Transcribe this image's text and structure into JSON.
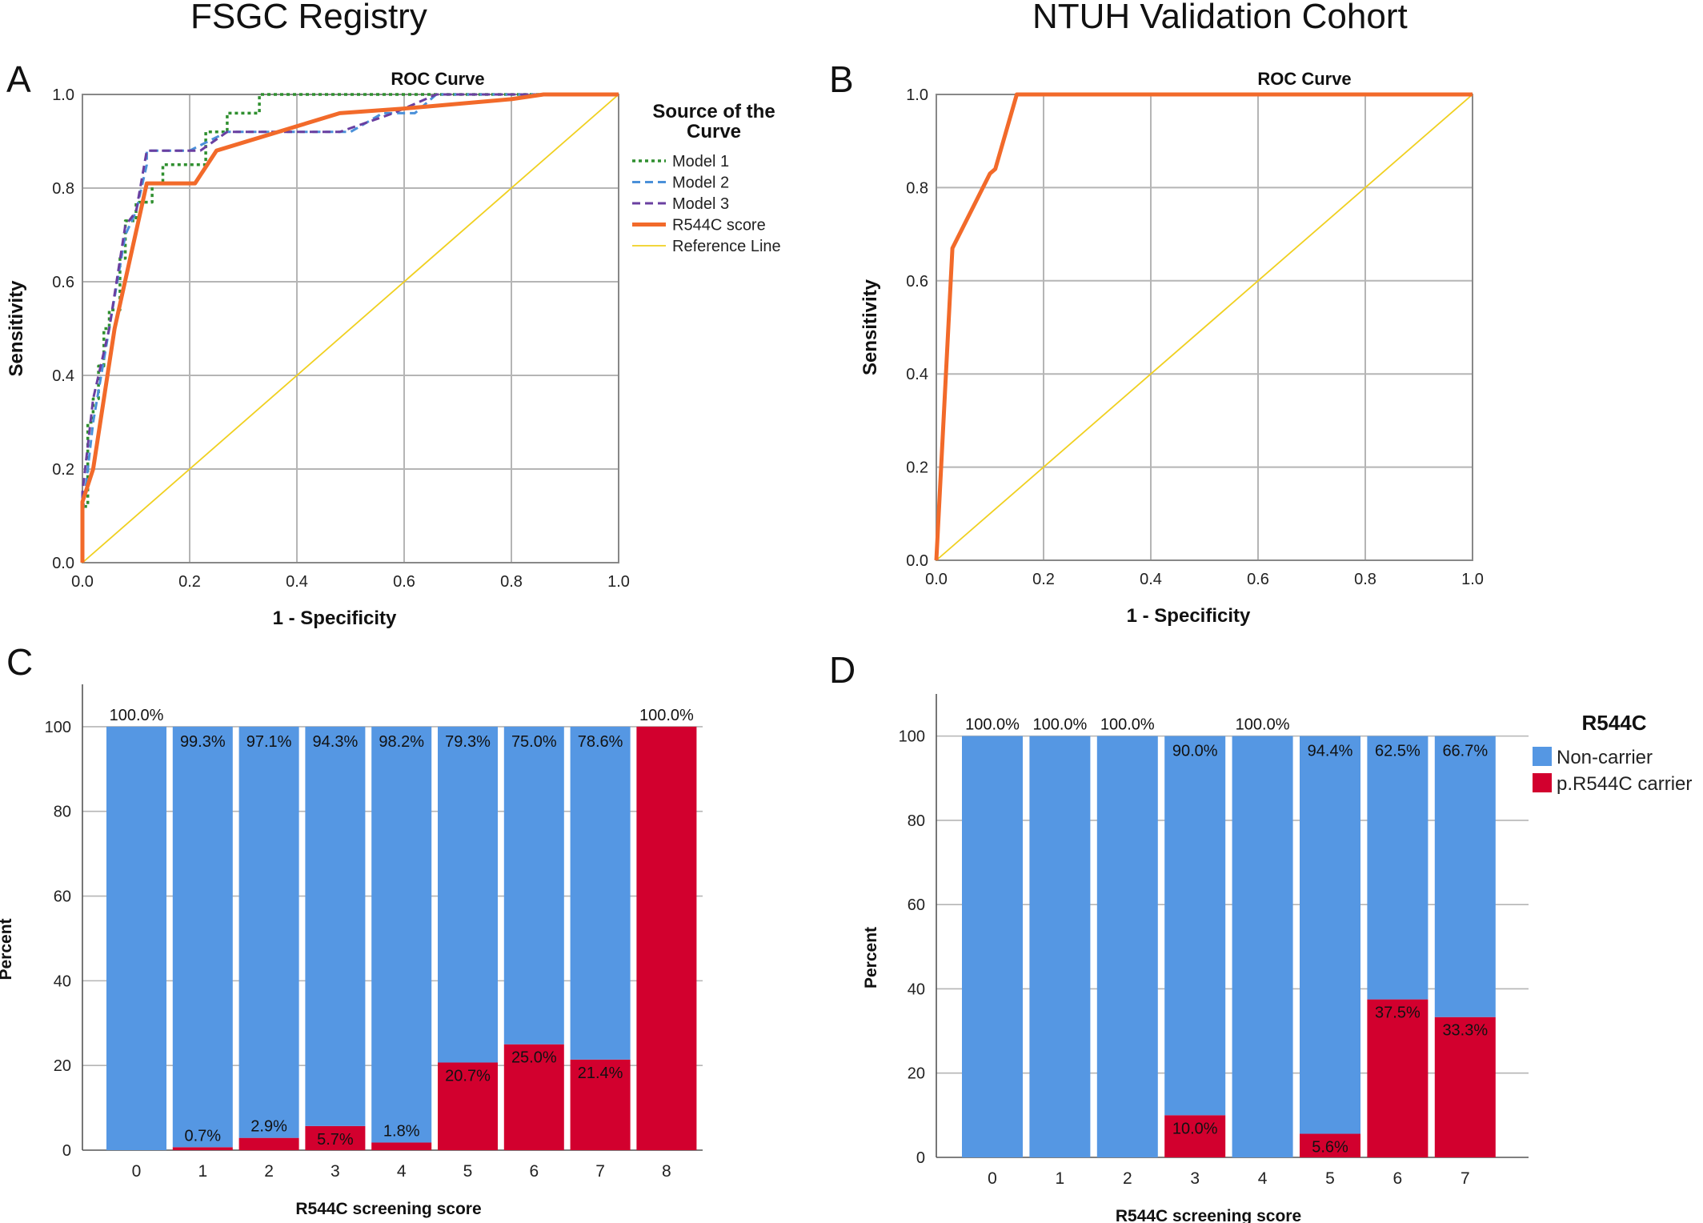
{
  "titles": {
    "left": "FSGC Registry",
    "right": "NTUH Validation Cohort"
  },
  "panel_letters": [
    "A",
    "B",
    "C",
    "D"
  ],
  "colors": {
    "model1": "#2f8f2f",
    "model2": "#4a90d9",
    "model3": "#6a3fa0",
    "r544c_score": "#f26a2a",
    "reference": "#f0d020",
    "non_carrier": "#5597e3",
    "carrier": "#d2002e",
    "grid": "#b5b5b5"
  },
  "chart_data": [
    {
      "id": "A",
      "type": "line",
      "title": "ROC Curve",
      "xlabel": "1 - Specificity",
      "ylabel": "Sensitivity",
      "xlim": [
        0,
        1
      ],
      "ylim": [
        0,
        1
      ],
      "xticks": [
        "0.0",
        "0.2",
        "0.4",
        "0.6",
        "0.8",
        "1.0"
      ],
      "yticks": [
        "0.0",
        "0.2",
        "0.4",
        "0.6",
        "0.8",
        "1.0"
      ],
      "grid": true,
      "legend": {
        "title": "Source of the Curve",
        "position": "right",
        "entries": [
          "Model 1",
          "Model 2",
          "Model 3",
          "R544C score",
          "Reference Line"
        ]
      },
      "series": [
        {
          "name": "Model 1",
          "style": "dotted",
          "color_key": "model1",
          "points": [
            [
              0,
              0
            ],
            [
              0,
              0.12
            ],
            [
              0.01,
              0.12
            ],
            [
              0.01,
              0.3
            ],
            [
              0.02,
              0.3
            ],
            [
              0.02,
              0.35
            ],
            [
              0.03,
              0.35
            ],
            [
              0.03,
              0.42
            ],
            [
              0.04,
              0.42
            ],
            [
              0.04,
              0.5
            ],
            [
              0.05,
              0.5
            ],
            [
              0.05,
              0.54
            ],
            [
              0.07,
              0.54
            ],
            [
              0.07,
              0.65
            ],
            [
              0.08,
              0.65
            ],
            [
              0.08,
              0.73
            ],
            [
              0.1,
              0.73
            ],
            [
              0.1,
              0.77
            ],
            [
              0.13,
              0.77
            ],
            [
              0.13,
              0.81
            ],
            [
              0.15,
              0.81
            ],
            [
              0.15,
              0.85
            ],
            [
              0.23,
              0.85
            ],
            [
              0.23,
              0.92
            ],
            [
              0.27,
              0.92
            ],
            [
              0.27,
              0.96
            ],
            [
              0.33,
              0.96
            ],
            [
              0.33,
              1.0
            ],
            [
              1.0,
              1.0
            ]
          ]
        },
        {
          "name": "Model 2",
          "style": "dashed",
          "color_key": "model2",
          "points": [
            [
              0,
              0
            ],
            [
              0,
              0.1
            ],
            [
              0.02,
              0.3
            ],
            [
              0.05,
              0.5
            ],
            [
              0.08,
              0.7
            ],
            [
              0.1,
              0.75
            ],
            [
              0.12,
              0.85
            ],
            [
              0.12,
              0.88
            ],
            [
              0.2,
              0.88
            ],
            [
              0.27,
              0.92
            ],
            [
              0.5,
              0.92
            ],
            [
              0.56,
              0.96
            ],
            [
              0.62,
              0.96
            ],
            [
              0.66,
              1.0
            ],
            [
              1.0,
              1.0
            ]
          ]
        },
        {
          "name": "Model 3",
          "style": "dashed",
          "color_key": "model3",
          "points": [
            [
              0,
              0
            ],
            [
              0,
              0.15
            ],
            [
              0.02,
              0.35
            ],
            [
              0.05,
              0.5
            ],
            [
              0.08,
              0.72
            ],
            [
              0.1,
              0.75
            ],
            [
              0.12,
              0.88
            ],
            [
              0.22,
              0.88
            ],
            [
              0.27,
              0.92
            ],
            [
              0.48,
              0.92
            ],
            [
              0.58,
              0.96
            ],
            [
              0.62,
              0.98
            ],
            [
              0.66,
              1.0
            ],
            [
              1.0,
              1.0
            ]
          ]
        },
        {
          "name": "R544C score",
          "style": "solid",
          "color_key": "r544c_score",
          "points": [
            [
              0,
              0
            ],
            [
              0,
              0.13
            ],
            [
              0.02,
              0.2
            ],
            [
              0.06,
              0.5
            ],
            [
              0.12,
              0.81
            ],
            [
              0.21,
              0.81
            ],
            [
              0.25,
              0.88
            ],
            [
              0.48,
              0.96
            ],
            [
              0.6,
              0.97
            ],
            [
              0.8,
              0.99
            ],
            [
              0.86,
              1.0
            ],
            [
              1.0,
              1.0
            ]
          ]
        },
        {
          "name": "Reference Line",
          "style": "thin",
          "color_key": "reference",
          "points": [
            [
              0,
              0
            ],
            [
              1,
              1
            ]
          ]
        }
      ]
    },
    {
      "id": "B",
      "type": "line",
      "title": "ROC Curve",
      "xlabel": "1 - Specificity",
      "ylabel": "Sensitivity",
      "xlim": [
        0,
        1
      ],
      "ylim": [
        0,
        1
      ],
      "xticks": [
        "0.0",
        "0.2",
        "0.4",
        "0.6",
        "0.8",
        "1.0"
      ],
      "yticks": [
        "0.0",
        "0.2",
        "0.4",
        "0.6",
        "0.8",
        "1.0"
      ],
      "grid": true,
      "series": [
        {
          "name": "R544C score",
          "style": "solid",
          "color_key": "r544c_score",
          "points": [
            [
              0,
              0
            ],
            [
              0.03,
              0.67
            ],
            [
              0.1,
              0.83
            ],
            [
              0.11,
              0.84
            ],
            [
              0.15,
              1.0
            ],
            [
              1.0,
              1.0
            ]
          ]
        },
        {
          "name": "Reference Line",
          "style": "thin",
          "color_key": "reference",
          "points": [
            [
              0,
              0
            ],
            [
              1,
              1
            ]
          ]
        }
      ]
    },
    {
      "id": "C",
      "type": "bar",
      "stacked": true,
      "xlabel": "R544C screening score",
      "ylabel": "Percent",
      "ylim": [
        0,
        110
      ],
      "yticks": [
        "0",
        "20",
        "40",
        "60",
        "80",
        "100"
      ],
      "grid": true,
      "categories": [
        "0",
        "1",
        "2",
        "3",
        "4",
        "5",
        "6",
        "7",
        "8"
      ],
      "series": [
        {
          "name": "Non-carrier",
          "color_key": "non_carrier",
          "values": [
            100.0,
            99.3,
            97.1,
            94.3,
            98.2,
            79.3,
            75.0,
            78.6,
            0
          ],
          "labels": [
            "100.0%",
            "99.3%",
            "97.1%",
            "94.3%",
            "98.2%",
            "79.3%",
            "75.0%",
            "78.6%",
            ""
          ]
        },
        {
          "name": "p.R544C carrier",
          "color_key": "carrier",
          "values": [
            0,
            0.7,
            2.9,
            5.7,
            1.8,
            20.7,
            25.0,
            21.4,
            100.0
          ],
          "labels": [
            "",
            "0.7%",
            "2.9%",
            "5.7%",
            "1.8%",
            "20.7%",
            "25.0%",
            "21.4%",
            "100.0%"
          ]
        }
      ]
    },
    {
      "id": "D",
      "type": "bar",
      "stacked": true,
      "xlabel": "R544C screening score",
      "ylabel": "Percent",
      "ylim": [
        0,
        110
      ],
      "yticks": [
        "0",
        "20",
        "40",
        "60",
        "80",
        "100"
      ],
      "grid": true,
      "categories": [
        "0",
        "1",
        "2",
        "3",
        "4",
        "5",
        "6",
        "7"
      ],
      "legend": {
        "title": "R544C",
        "position": "right",
        "entries": [
          "Non-carrier",
          "p.R544C carrier"
        ]
      },
      "series": [
        {
          "name": "Non-carrier",
          "color_key": "non_carrier",
          "values": [
            100.0,
            100.0,
            100.0,
            90.0,
            100.0,
            94.4,
            62.5,
            66.7
          ],
          "labels": [
            "100.0%",
            "100.0%",
            "100.0%",
            "90.0%",
            "100.0%",
            "94.4%",
            "62.5%",
            "66.7%"
          ]
        },
        {
          "name": "p.R544C carrier",
          "color_key": "carrier",
          "values": [
            0,
            0,
            0,
            10.0,
            0,
            5.6,
            37.5,
            33.3
          ],
          "labels": [
            "",
            "",
            "",
            "10.0%",
            "",
            "5.6%",
            "37.5%",
            "33.3%"
          ]
        }
      ]
    }
  ]
}
